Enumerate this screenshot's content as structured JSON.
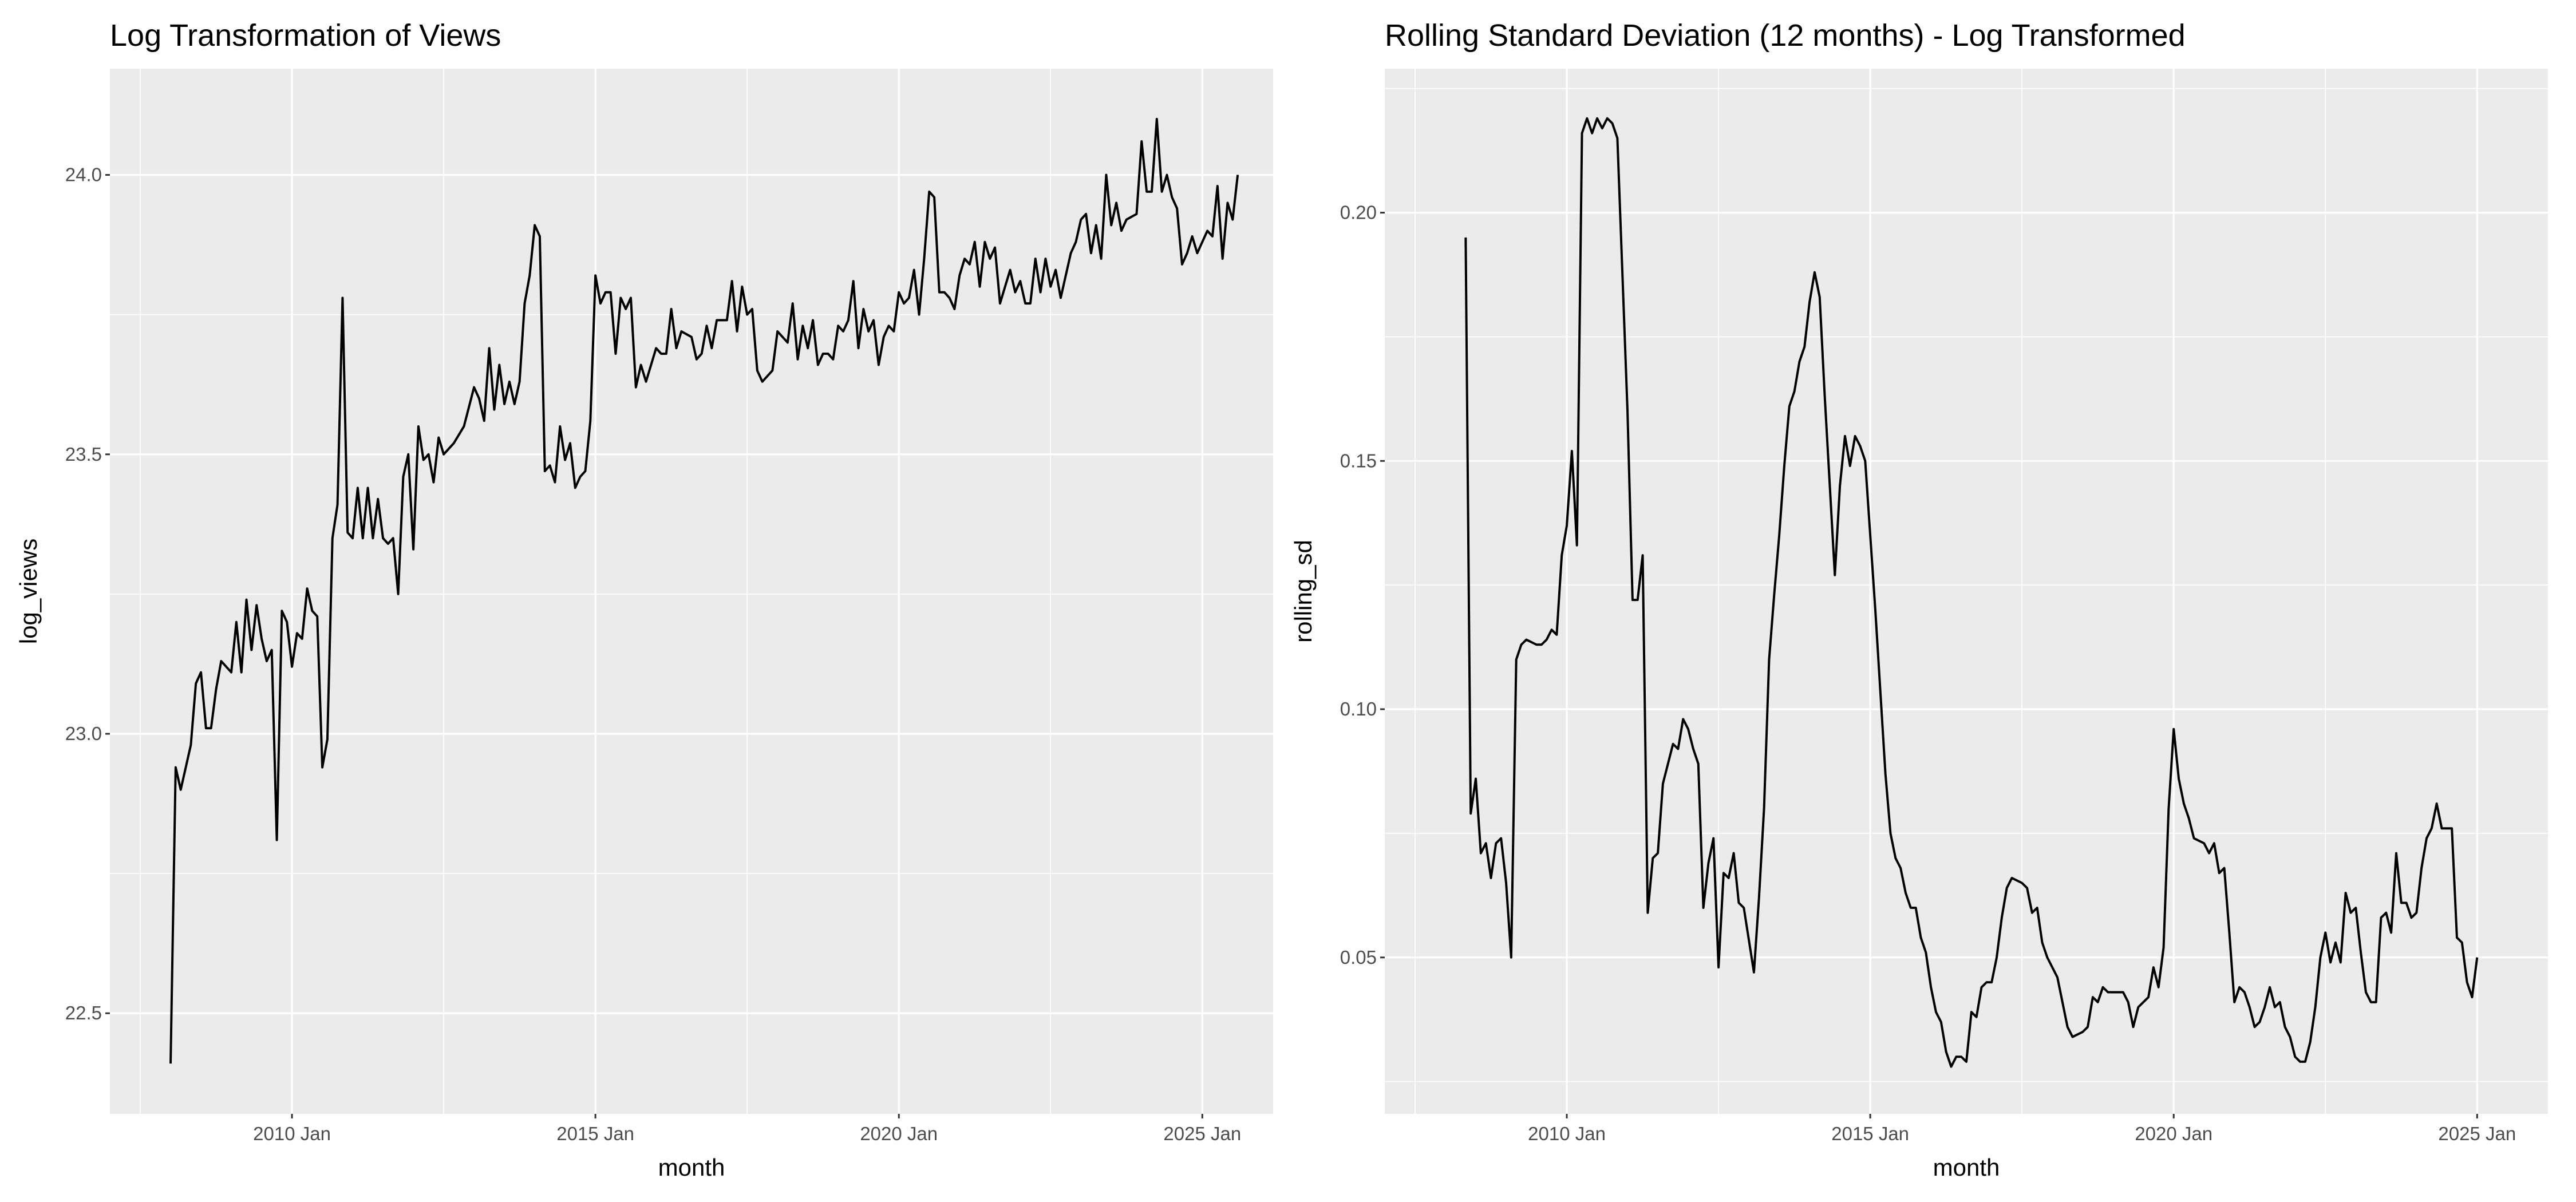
{
  "chart_data": [
    {
      "type": "line",
      "title": "Log Transformation of Views",
      "x_label": "month",
      "y_label": "log_views",
      "color": "#000000",
      "grid": true,
      "xlim": [
        "2007 Jan",
        "2026 Mar"
      ],
      "xticks": [
        "2010 Jan",
        "2015 Jan",
        "2020 Jan",
        "2025 Jan"
      ],
      "ylim": [
        22.32,
        24.19
      ],
      "yticks": [
        22.5,
        {
          "value": 23,
          "label": "23.0"
        },
        23.5,
        {
          "value": 24,
          "label": "24.0"
        }
      ],
      "x": [
        "2008 Jan",
        "2008 Feb",
        "2008 Mar",
        "2008 May",
        "2008 Jun",
        "2008 Jul",
        "2008 Aug",
        "2008 Sep",
        "2008 Oct",
        "2008 Nov",
        "2009 Jan",
        "2009 Feb",
        "2009 Mar",
        "2009 Apr",
        "2009 May",
        "2009 Jun",
        "2009 Jul",
        "2009 Aug",
        "2009 Sep",
        "2009 Oct",
        "2009 Nov",
        "2009 Dec",
        "2010 Jan",
        "2010 Feb",
        "2010 Mar",
        "2010 Apr",
        "2010 May",
        "2010 Jun",
        "2010 Jul",
        "2010 Aug",
        "2010 Sep",
        "2010 Oct",
        "2010 Nov",
        "2010 Dec",
        "2011 Jan",
        "2011 Feb",
        "2011 Mar",
        "2011 Apr",
        "2011 May",
        "2011 Jun",
        "2011 Jul",
        "2011 Aug",
        "2011 Sep",
        "2011 Oct",
        "2011 Nov",
        "2011 Dec",
        "2012 Jan",
        "2012 Feb",
        "2012 Mar",
        "2012 Apr",
        "2012 May",
        "2012 Jun",
        "2012 Jul",
        "2012 Sep",
        "2012 Nov",
        "2013 Jan",
        "2013 Feb",
        "2013 Mar",
        "2013 Apr",
        "2013 May",
        "2013 Jun",
        "2013 Jul",
        "2013 Aug",
        "2013 Sep",
        "2013 Oct",
        "2013 Nov",
        "2013 Dec",
        "2014 Jan",
        "2014 Feb",
        "2014 Mar",
        "2014 Apr",
        "2014 May",
        "2014 Jun",
        "2014 Jul",
        "2014 Aug",
        "2014 Sep",
        "2014 Oct",
        "2014 Nov",
        "2014 Dec",
        "2015 Jan",
        "2015 Feb",
        "2015 Mar",
        "2015 Apr",
        "2015 May",
        "2015 Jun",
        "2015 Jul",
        "2015 Aug",
        "2015 Sep",
        "2015 Oct",
        "2015 Nov",
        "2016 Jan",
        "2016 Feb",
        "2016 Mar",
        "2016 Apr",
        "2016 May",
        "2016 Jun",
        "2016 Aug",
        "2016 Sep",
        "2016 Oct",
        "2016 Nov",
        "2016 Dec",
        "2017 Jan",
        "2017 Mar",
        "2017 Apr",
        "2017 May",
        "2017 Jun",
        "2017 Jul",
        "2017 Aug",
        "2017 Sep",
        "2017 Oct",
        "2017 Dec",
        "2018 Jan",
        "2018 Mar",
        "2018 Apr",
        "2018 May",
        "2018 Jun",
        "2018 Jul",
        "2018 Aug",
        "2018 Sep",
        "2018 Oct",
        "2018 Nov",
        "2018 Dec",
        "2019 Jan",
        "2019 Feb",
        "2019 Mar",
        "2019 Apr",
        "2019 May",
        "2019 Jun",
        "2019 Jul",
        "2019 Aug",
        "2019 Sep",
        "2019 Oct",
        "2019 Nov",
        "2019 Dec",
        "2020 Jan",
        "2020 Feb",
        "2020 Mar",
        "2020 Apr",
        "2020 May",
        "2020 Jun",
        "2020 Jul",
        "2020 Aug",
        "2020 Sep",
        "2020 Oct",
        "2020 Nov",
        "2020 Dec",
        "2021 Jan",
        "2021 Feb",
        "2021 Mar",
        "2021 Apr",
        "2021 May",
        "2021 Jun",
        "2021 Jul",
        "2021 Aug",
        "2021 Sep",
        "2021 Oct",
        "2021 Nov",
        "2021 Dec",
        "2022 Jan",
        "2022 Feb",
        "2022 Mar",
        "2022 Apr",
        "2022 May",
        "2022 Jun",
        "2022 Jul",
        "2022 Aug",
        "2022 Sep",
        "2022 Oct",
        "2022 Nov",
        "2022 Dec",
        "2023 Jan",
        "2023 Feb",
        "2023 Mar",
        "2023 Apr",
        "2023 May",
        "2023 Jun",
        "2023 Jul",
        "2023 Aug",
        "2023 Sep",
        "2023 Oct",
        "2023 Dec",
        "2024 Jan",
        "2024 Feb",
        "2024 Mar",
        "2024 Apr",
        "2024 May",
        "2024 Jun",
        "2024 Jul",
        "2024 Aug",
        "2024 Sep",
        "2024 Oct",
        "2024 Nov",
        "2024 Dec",
        "2025 Jan",
        "2025 Feb",
        "2025 Mar",
        "2025 Apr",
        "2025 May",
        "2025 Jun",
        "2025 Jul",
        "2025 Aug"
      ],
      "values": [
        22.41,
        22.94,
        22.9,
        22.98,
        23.09,
        23.11,
        23.01,
        23.01,
        23.08,
        23.13,
        23.11,
        23.2,
        23.11,
        23.24,
        23.15,
        23.23,
        23.17,
        23.13,
        23.15,
        22.81,
        23.22,
        23.2,
        23.12,
        23.18,
        23.17,
        23.26,
        23.22,
        23.21,
        22.94,
        22.99,
        23.35,
        23.41,
        23.78,
        23.36,
        23.35,
        23.44,
        23.35,
        23.44,
        23.35,
        23.42,
        23.35,
        23.34,
        23.35,
        23.25,
        23.46,
        23.5,
        23.33,
        23.55,
        23.49,
        23.5,
        23.45,
        23.53,
        23.5,
        23.52,
        23.55,
        23.62,
        23.6,
        23.56,
        23.69,
        23.58,
        23.66,
        23.59,
        23.63,
        23.59,
        23.63,
        23.77,
        23.82,
        23.91,
        23.89,
        23.47,
        23.48,
        23.45,
        23.55,
        23.49,
        23.52,
        23.44,
        23.46,
        23.47,
        23.56,
        23.82,
        23.77,
        23.79,
        23.79,
        23.68,
        23.78,
        23.76,
        23.78,
        23.62,
        23.66,
        23.63,
        23.69,
        23.68,
        23.68,
        23.76,
        23.69,
        23.72,
        23.71,
        23.67,
        23.68,
        23.73,
        23.69,
        23.74,
        23.74,
        23.81,
        23.72,
        23.8,
        23.75,
        23.76,
        23.65,
        23.63,
        23.65,
        23.72,
        23.7,
        23.77,
        23.67,
        23.73,
        23.69,
        23.74,
        23.66,
        23.68,
        23.68,
        23.67,
        23.73,
        23.72,
        23.74,
        23.81,
        23.69,
        23.76,
        23.72,
        23.74,
        23.66,
        23.71,
        23.73,
        23.72,
        23.79,
        23.77,
        23.78,
        23.83,
        23.75,
        23.85,
        23.97,
        23.96,
        23.79,
        23.79,
        23.78,
        23.76,
        23.82,
        23.85,
        23.84,
        23.88,
        23.8,
        23.88,
        23.85,
        23.87,
        23.77,
        23.8,
        23.83,
        23.79,
        23.81,
        23.77,
        23.77,
        23.85,
        23.79,
        23.85,
        23.8,
        23.83,
        23.78,
        23.82,
        23.86,
        23.88,
        23.92,
        23.93,
        23.86,
        23.91,
        23.85,
        24.0,
        23.91,
        23.95,
        23.9,
        23.92,
        23.93,
        24.06,
        23.97,
        23.97,
        24.1,
        23.97,
        24.0,
        23.96,
        23.94,
        23.84,
        23.86,
        23.89,
        23.86,
        23.88,
        23.9,
        23.89,
        23.98,
        23.85,
        23.95,
        23.92,
        24.0
      ]
    },
    {
      "type": "line",
      "title": "Rolling Standard Deviation (12 months) - Log Transformed",
      "x_label": "month",
      "y_label": "rolling_sd",
      "color": "#000000",
      "grid": true,
      "xlim": [
        "2007 Jan",
        "2026 Mar"
      ],
      "xticks": [
        "2010 Jan",
        "2015 Jan",
        "2020 Jan",
        "2025 Jan"
      ],
      "ylim": [
        0.0185,
        0.229
      ],
      "yticks": [
        0.05,
        {
          "value": 0.1,
          "label": "0.10"
        },
        0.15,
        {
          "value": 0.2,
          "label": "0.20"
        }
      ],
      "x": [
        "2008 May",
        "2008 Jun",
        "2008 Jul",
        "2008 Aug",
        "2008 Sep",
        "2008 Oct",
        "2008 Nov",
        "2008 Dec",
        "2009 Jan",
        "2009 Feb",
        "2009 Mar",
        "2009 Apr",
        "2009 May",
        "2009 Jul",
        "2009 Aug",
        "2009 Sep",
        "2009 Oct",
        "2009 Nov",
        "2009 Dec",
        "2010 Jan",
        "2010 Feb",
        "2010 Mar",
        "2010 Apr",
        "2010 May",
        "2010 Jun",
        "2010 Jul",
        "2010 Aug",
        "2010 Sep",
        "2010 Oct",
        "2010 Nov",
        "2011 Jan",
        "2011 Feb",
        "2011 Mar",
        "2011 Apr",
        "2011 May",
        "2011 Jun",
        "2011 Jul",
        "2011 Aug",
        "2011 Sep",
        "2011 Oct",
        "2011 Nov",
        "2011 Dec",
        "2012 Jan",
        "2012 Feb",
        "2012 Mar",
        "2012 Apr",
        "2012 May",
        "2012 Jun",
        "2012 Jul",
        "2012 Aug",
        "2012 Sep",
        "2012 Oct",
        "2012 Nov",
        "2012 Dec",
        "2013 Feb",
        "2013 Mar",
        "2013 Apr",
        "2013 May",
        "2013 Jun",
        "2013 Jul",
        "2013 Aug",
        "2013 Sep",
        "2013 Oct",
        "2013 Nov",
        "2013 Dec",
        "2014 Jan",
        "2014 Feb",
        "2014 Mar",
        "2014 Apr",
        "2014 May",
        "2014 Jun",
        "2014 Jul",
        "2014 Aug",
        "2014 Sep",
        "2014 Oct",
        "2014 Nov",
        "2014 Dec",
        "2015 Feb",
        "2015 Apr",
        "2015 May",
        "2015 Jun",
        "2015 Jul",
        "2015 Aug",
        "2015 Sep",
        "2015 Oct",
        "2015 Nov",
        "2015 Dec",
        "2016 Jan",
        "2016 Feb",
        "2016 Mar",
        "2016 Apr",
        "2016 May",
        "2016 Jun",
        "2016 Jul",
        "2016 Aug",
        "2016 Sep",
        "2016 Oct",
        "2016 Nov",
        "2016 Dec",
        "2017 Jan",
        "2017 Feb",
        "2017 Mar",
        "2017 Apr",
        "2017 May",
        "2017 Jul",
        "2017 Aug",
        "2017 Sep",
        "2017 Oct",
        "2017 Nov",
        "2017 Dec",
        "2018 Feb",
        "2018 Mar",
        "2018 Apr",
        "2018 May",
        "2018 Jul",
        "2018 Aug",
        "2018 Sep",
        "2018 Oct",
        "2018 Nov",
        "2018 Dec",
        "2019 Mar",
        "2019 Apr",
        "2019 May",
        "2019 Jun",
        "2019 Aug",
        "2019 Sep",
        "2019 Oct",
        "2019 Nov",
        "2019 Dec",
        "2020 Jan",
        "2020 Feb",
        "2020 Mar",
        "2020 Apr",
        "2020 May",
        "2020 Jul",
        "2020 Aug",
        "2020 Sep",
        "2020 Oct",
        "2020 Nov",
        "2020 Dec",
        "2021 Jan",
        "2021 Feb",
        "2021 Mar",
        "2021 Apr",
        "2021 May",
        "2021 Jun",
        "2021 Jul",
        "2021 Aug",
        "2021 Sep",
        "2021 Oct",
        "2021 Nov",
        "2021 Dec",
        "2022 Jan",
        "2022 Feb",
        "2022 Mar",
        "2022 Apr",
        "2022 May",
        "2022 Jun",
        "2022 Jul",
        "2022 Aug",
        "2022 Sep",
        "2022 Oct",
        "2022 Nov",
        "2022 Dec",
        "2023 Jan",
        "2023 Feb",
        "2023 Mar",
        "2023 Apr",
        "2023 May",
        "2023 Jun",
        "2023 Jul",
        "2023 Aug",
        "2023 Sep",
        "2023 Oct",
        "2023 Nov",
        "2023 Dec",
        "2024 Jan",
        "2024 Feb",
        "2024 Mar",
        "2024 Apr",
        "2024 May",
        "2024 Jun",
        "2024 Jul",
        "2024 Aug",
        "2024 Sep",
        "2024 Oct",
        "2024 Nov",
        "2024 Dec",
        "2025 Jan"
      ],
      "values": [
        0.195,
        0.079,
        0.086,
        0.071,
        0.073,
        0.066,
        0.073,
        0.074,
        0.065,
        0.05,
        0.11,
        0.113,
        0.114,
        0.113,
        0.113,
        0.114,
        0.116,
        0.115,
        0.131,
        0.137,
        0.152,
        0.133,
        0.216,
        0.219,
        0.216,
        0.219,
        0.217,
        0.219,
        0.218,
        0.215,
        0.16,
        0.122,
        0.122,
        0.131,
        0.059,
        0.07,
        0.071,
        0.085,
        0.089,
        0.093,
        0.092,
        0.098,
        0.096,
        0.092,
        0.089,
        0.06,
        0.069,
        0.074,
        0.048,
        0.067,
        0.066,
        0.071,
        0.061,
        0.06,
        0.047,
        0.062,
        0.08,
        0.11,
        0.123,
        0.135,
        0.149,
        0.161,
        0.164,
        0.17,
        0.173,
        0.182,
        0.188,
        0.183,
        0.163,
        0.145,
        0.127,
        0.145,
        0.155,
        0.149,
        0.155,
        0.153,
        0.15,
        0.12,
        0.087,
        0.075,
        0.07,
        0.068,
        0.063,
        0.06,
        0.06,
        0.054,
        0.051,
        0.044,
        0.039,
        0.037,
        0.031,
        0.028,
        0.03,
        0.03,
        0.029,
        0.039,
        0.038,
        0.044,
        0.045,
        0.045,
        0.05,
        0.058,
        0.064,
        0.066,
        0.065,
        0.064,
        0.059,
        0.06,
        0.053,
        0.05,
        0.046,
        0.041,
        0.036,
        0.034,
        0.035,
        0.036,
        0.042,
        0.041,
        0.044,
        0.043,
        0.043,
        0.041,
        0.036,
        0.04,
        0.042,
        0.048,
        0.044,
        0.052,
        0.08,
        0.096,
        0.086,
        0.081,
        0.078,
        0.074,
        0.073,
        0.071,
        0.073,
        0.067,
        0.068,
        0.055,
        0.041,
        0.044,
        0.043,
        0.04,
        0.036,
        0.037,
        0.04,
        0.044,
        0.04,
        0.041,
        0.036,
        0.034,
        0.03,
        0.029,
        0.029,
        0.033,
        0.04,
        0.05,
        0.055,
        0.049,
        0.053,
        0.049,
        0.063,
        0.059,
        0.06,
        0.051,
        0.043,
        0.041,
        0.041,
        0.058,
        0.059,
        0.055,
        0.071,
        0.061,
        0.061,
        0.058,
        0.059,
        0.068,
        0.074,
        0.076,
        0.081,
        0.076,
        0.076,
        0.076,
        0.054,
        0.053,
        0.045,
        0.042,
        0.05
      ]
    }
  ]
}
